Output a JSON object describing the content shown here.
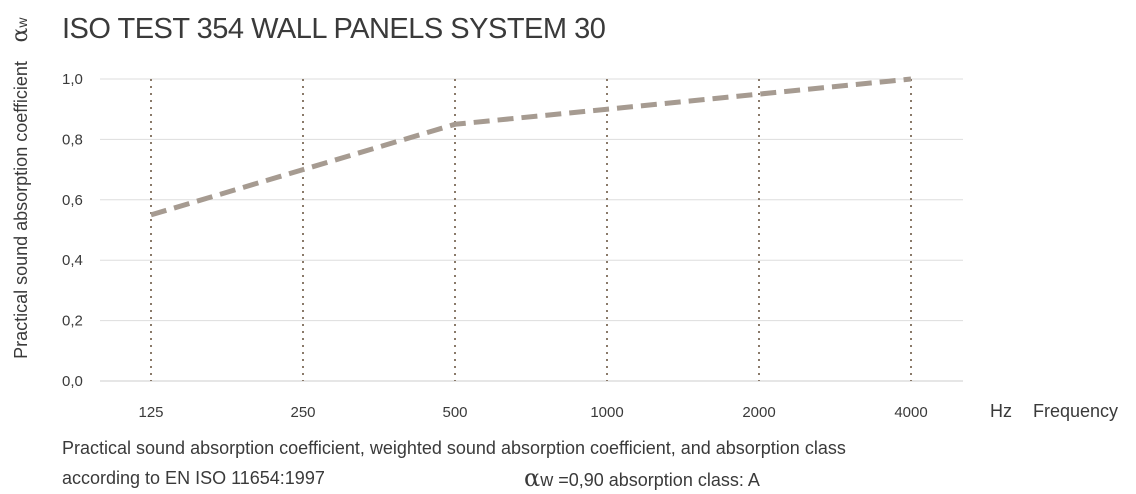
{
  "chart_data": {
    "type": "line",
    "title": "ISO TEST 354 WALL PANELS SYSTEM 30",
    "ylabel": "Practical sound absorption coefficient",
    "ylabel_symbol": "α",
    "ylabel_symbol_sub": "w",
    "xlabel_unit": "Hz",
    "xlabel": "Frequency",
    "categories": [
      "125",
      "250",
      "500",
      "1000",
      "2000",
      "4000"
    ],
    "series": [
      {
        "values": [
          0.55,
          0.7,
          0.85,
          0.9,
          0.95,
          1.0
        ]
      }
    ],
    "ylim": [
      0,
      1.0
    ],
    "yticks": [
      "0,0",
      "0,2",
      "0,4",
      "0,6",
      "0,8",
      "1,0"
    ],
    "grid": true,
    "colors": {
      "line": "#a69b91",
      "grid": "#dddddd",
      "vertical": "#8a7a6a",
      "text": "#3a3a3a"
    }
  },
  "caption": {
    "line1": "Practical sound absorption coefficient, weighted sound absorption coefficient, and absorption class",
    "line2": "according to EN ISO 11654:1997",
    "rating_symbol": "α",
    "rating_text": "w =0,90 absorption class: A"
  }
}
